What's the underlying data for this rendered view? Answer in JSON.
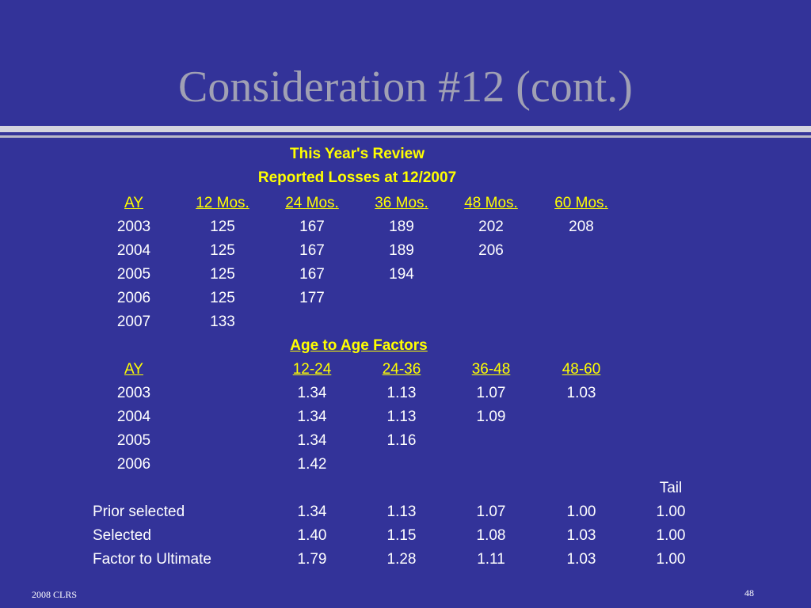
{
  "header": {
    "title": "Consideration #12 (cont.)"
  },
  "reported": {
    "title": "This Year's Review",
    "subtitle": "Reported Losses at 12/2007",
    "columns": [
      "AY",
      "12 Mos.",
      "24 Mos.",
      "36 Mos.",
      "48 Mos.",
      "60 Mos."
    ],
    "rows": [
      [
        "2003",
        "125",
        "167",
        "189",
        "202",
        "208"
      ],
      [
        "2004",
        "125",
        "167",
        "189",
        "206"
      ],
      [
        "2005",
        "125",
        "167",
        "194"
      ],
      [
        "2006",
        "125",
        "177"
      ],
      [
        "2007",
        "133"
      ]
    ]
  },
  "factors": {
    "title": "Age to Age Factors",
    "columns": [
      "AY",
      "12-24",
      "24-36",
      "36-48",
      "48-60"
    ],
    "rows": [
      [
        "2003",
        "1.34",
        "1.13",
        "1.07",
        "1.03"
      ],
      [
        "2004",
        "1.34",
        "1.13",
        "1.09"
      ],
      [
        "2005",
        "1.34",
        "1.16"
      ],
      [
        "2006",
        "1.42"
      ]
    ]
  },
  "selection": {
    "tail_label": "Tail",
    "rows": [
      [
        "Prior selected",
        "1.34",
        "1.13",
        "1.07",
        "1.00",
        "1.00"
      ],
      [
        "Selected",
        "1.40",
        "1.15",
        "1.08",
        "1.03",
        "1.00"
      ],
      [
        "Factor to Ultimate",
        "1.79",
        "1.28",
        "1.11",
        "1.03",
        "1.00"
      ]
    ]
  },
  "footer": {
    "left": "2008 CLRS",
    "page": "48"
  }
}
